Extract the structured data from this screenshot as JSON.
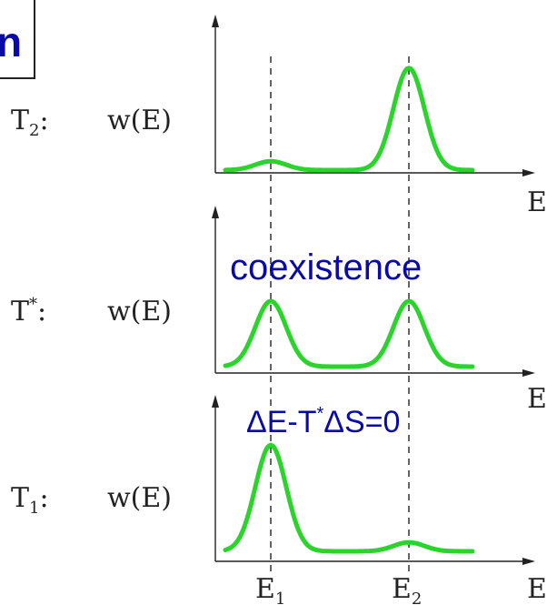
{
  "corner_fragment": "n",
  "colors": {
    "curve": "#2bd42b",
    "annotation": "#0a0aa8",
    "axis": "#222222"
  },
  "panels": [
    {
      "temperature_label": "T",
      "temperature_sub": "2",
      "temperature_sup": "",
      "suffix": ":",
      "y_label": "w(E)",
      "x_label": "E",
      "peaks": {
        "E1": 0.08,
        "E2": 0.92
      }
    },
    {
      "temperature_label": "T",
      "temperature_sub": "",
      "temperature_sup": "*",
      "suffix": ":",
      "y_label": "w(E)",
      "x_label": "E",
      "peaks": {
        "E1": 0.72,
        "E2": 0.72
      }
    },
    {
      "temperature_label": "T",
      "temperature_sub": "1",
      "temperature_sup": "",
      "suffix": ":",
      "y_label": "w(E)",
      "x_label": "E",
      "peaks": {
        "E1": 0.95,
        "E2": 0.08
      }
    }
  ],
  "annotations": {
    "coexistence": "coexistence",
    "condition": {
      "prefix": "ΔE-T",
      "sup": "*",
      "suffix": "ΔS=0"
    }
  },
  "ticks": [
    {
      "label": "E",
      "sub": "1"
    },
    {
      "label": "E",
      "sub": "2"
    }
  ]
}
